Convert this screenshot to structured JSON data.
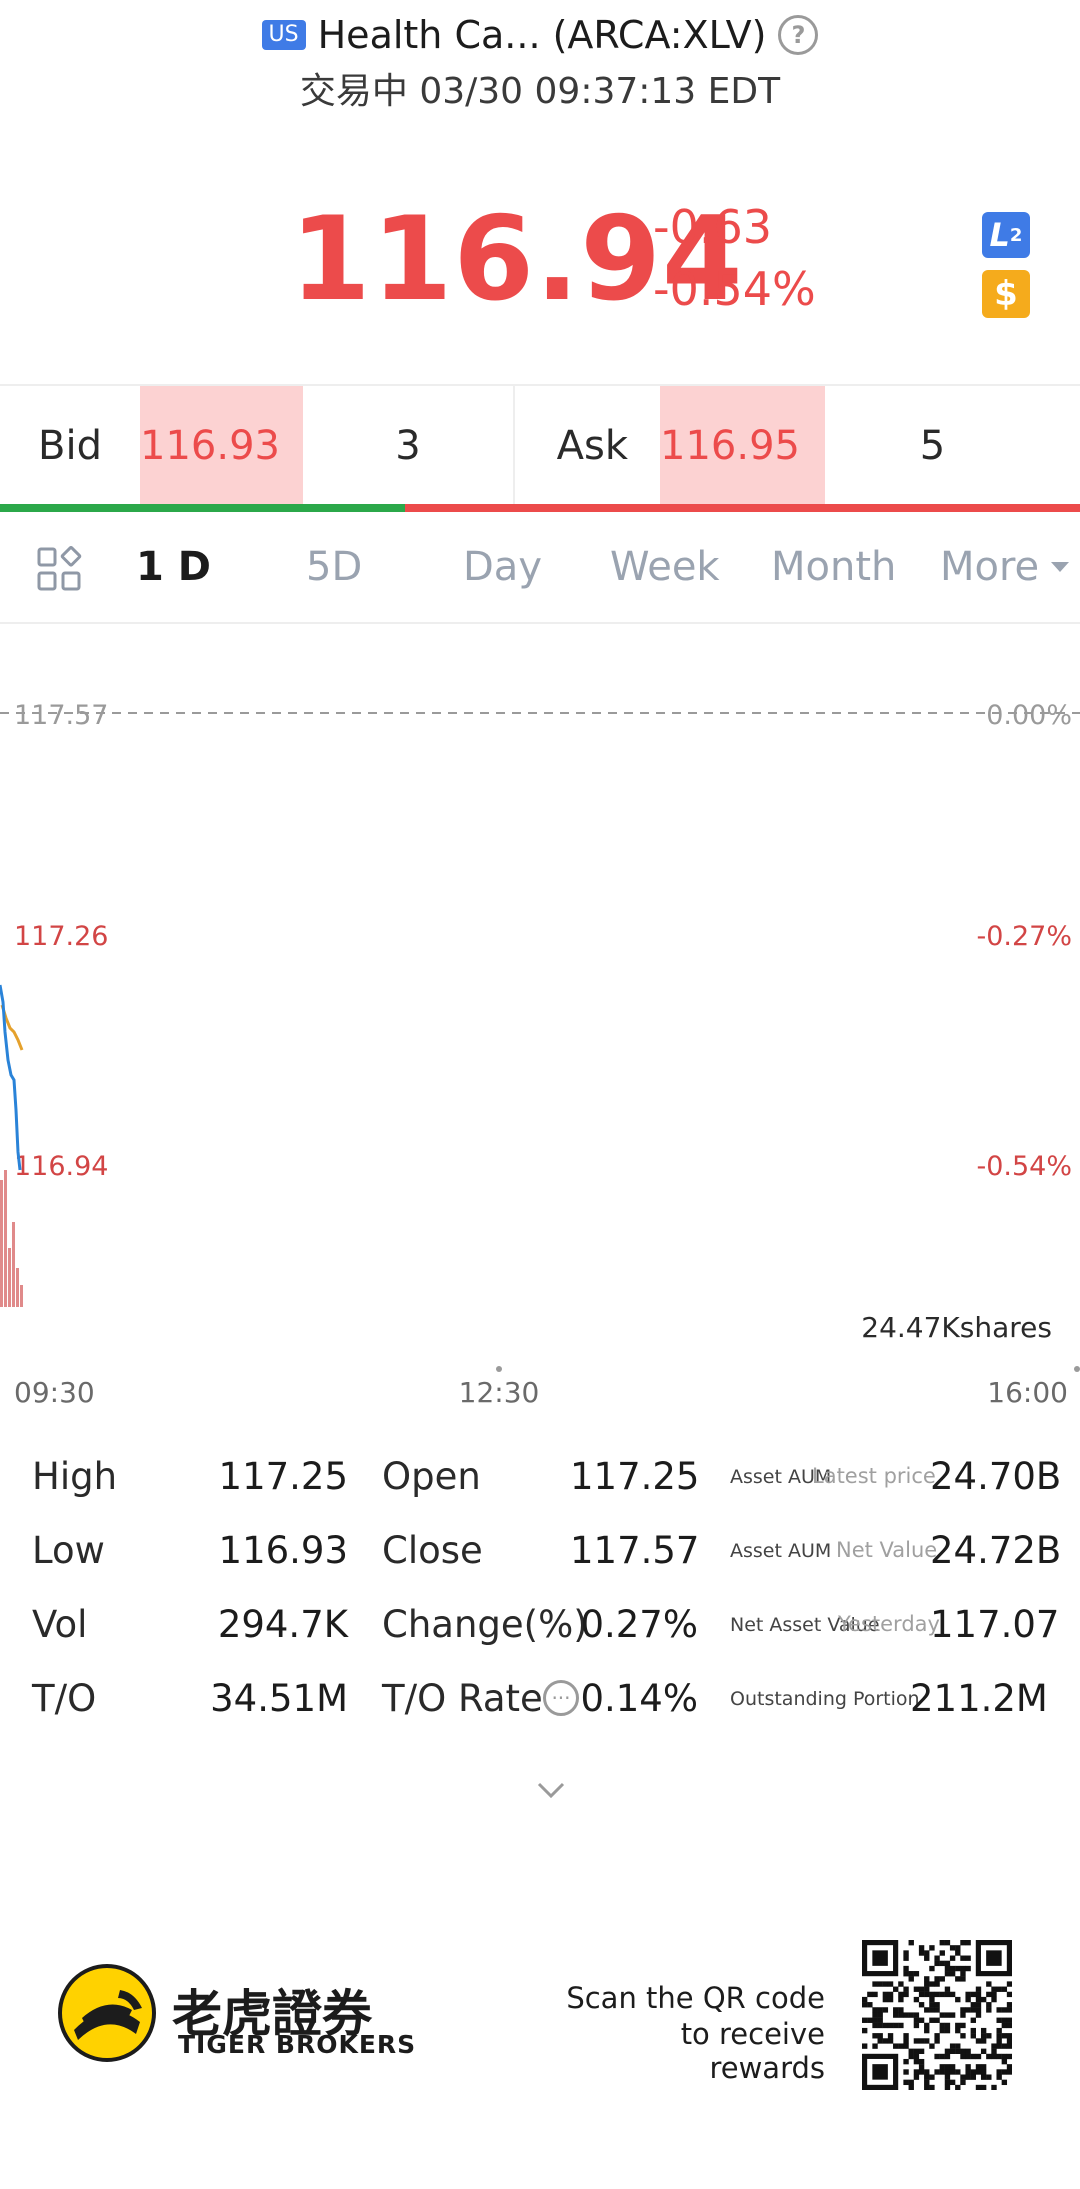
{
  "header": {
    "market_badge": "US",
    "title": "Health Ca... (ARCA:XLV)",
    "status_line": "交易中 03/30 09:37:13 EDT"
  },
  "quote": {
    "price": "116.94",
    "change": "-0.63",
    "change_pct": "-0.54%",
    "l2_label": "L",
    "l2_sub": "2",
    "dollar_label": "$"
  },
  "bidask": {
    "bid_label": "Bid",
    "bid_price": "116.93",
    "bid_size": "3",
    "ask_label": "Ask",
    "ask_price": "116.95",
    "ask_size": "5",
    "bid_ratio": 0.375
  },
  "tabs": [
    "1 D",
    "5D",
    "Day",
    "Week",
    "Month",
    "More"
  ],
  "chart": {
    "left_ticks": [
      "117.57",
      "117.26",
      "116.94"
    ],
    "right_ticks": [
      "0.00%",
      "-0.27%",
      "-0.54%"
    ],
    "volume_label": "24.47Kshares",
    "time_labels": [
      "09:30",
      "12:30",
      "16:00"
    ]
  },
  "stats": {
    "high_label": "High",
    "high": "117.25",
    "low_label": "Low",
    "low": "116.93",
    "vol_label": "Vol",
    "vol": "294.7K",
    "to_label": "T/O",
    "to": "34.51M",
    "open_label": "Open",
    "open": "117.25",
    "close_label": "Close",
    "close": "117.57",
    "chg_label": "Change(%)",
    "chg": "0.27%",
    "torate_label": "T/O Rate",
    "torate": "0.14%",
    "aum1_label": "Asset AUM",
    "aum1_sub": "Latest price",
    "aum1": "24.70B",
    "aum2_label": "Asset AUM",
    "aum2_sub": "Net Value",
    "aum2": "24.72B",
    "nav_label": "Net Asset Value",
    "nav_sub": "Yesterday",
    "nav": "117.07",
    "out_label": "Outstanding Portion",
    "out": "211.2M"
  },
  "footer": {
    "brand_cn": "老虎證券",
    "brand_en": "TIGER BROKERS",
    "scan_line1": "Scan the QR code",
    "scan_line2": "to receive rewards"
  },
  "colors": {
    "red": "#ec4b4b",
    "green": "#2ba84a",
    "blue": "#3f7be6",
    "orange": "#f5ab1c"
  }
}
